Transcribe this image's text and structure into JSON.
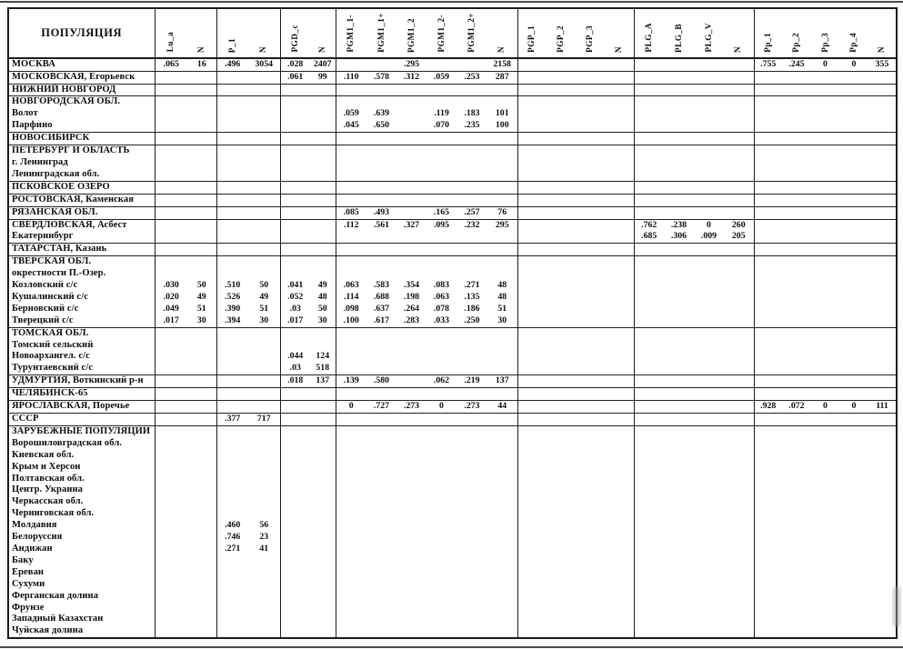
{
  "table": {
    "population_header": "ПОПУЛЯЦИЯ",
    "columns": [
      {
        "label": "Lu_a",
        "group_start": true
      },
      {
        "label": "N"
      },
      {
        "label": "P_1",
        "group_start": true
      },
      {
        "label": "N"
      },
      {
        "label": "PGD_c",
        "group_start": true
      },
      {
        "label": "N"
      },
      {
        "label": "PGM1_1-",
        "group_start": true
      },
      {
        "label": "PGM1_1+"
      },
      {
        "label": "PGM1_2"
      },
      {
        "label": "PGM1_2-"
      },
      {
        "label": "PGM1_2+"
      },
      {
        "label": "N"
      },
      {
        "label": "PGP_1",
        "group_start": true
      },
      {
        "label": "PGP_2"
      },
      {
        "label": "PGP_3"
      },
      {
        "label": "N"
      },
      {
        "label": "PLG_A",
        "group_start": true
      },
      {
        "label": "PLG_B"
      },
      {
        "label": "PLG_V"
      },
      {
        "label": "N"
      },
      {
        "label": "Pp_1",
        "group_start": true
      },
      {
        "label": "Pp_2"
      },
      {
        "label": "Pp_3"
      },
      {
        "label": "Pp_4"
      },
      {
        "label": "N"
      }
    ],
    "rows": [
      {
        "name": "МОСКВА",
        "section": true,
        "values": {
          "0": ".065",
          "1": "16",
          "2": ".496",
          "3": "3054",
          "4": ".028",
          "5": "2407",
          "8": ".295",
          "11": "2158",
          "20": ".755",
          "21": ".245",
          "22": "0",
          "23": "0",
          "24": "355"
        }
      },
      {
        "name": "МОСКОВСКАЯ, Егорьевск",
        "section": true,
        "values": {
          "4": ".061",
          "5": "99",
          "6": ".110",
          "7": ".578",
          "8": ".312",
          "9": ".059",
          "10": ".253",
          "11": "287"
        }
      },
      {
        "name": "НИЖНИЙ НОВГОРОД",
        "section": true,
        "values": {}
      },
      {
        "name": "НОВГОРОДСКАЯ ОБЛ.",
        "section": true,
        "values": {}
      },
      {
        "name": "Волот",
        "section": false,
        "values": {
          "6": ".059",
          "7": ".639",
          "9": ".119",
          "10": ".183",
          "11": "101"
        }
      },
      {
        "name": "Парфино",
        "section": false,
        "values": {
          "6": ".045",
          "7": ".650",
          "9": ".070",
          "10": ".235",
          "11": "100"
        }
      },
      {
        "name": "НОВОСИБИРСК",
        "section": true,
        "values": {}
      },
      {
        "name": "ПЕТЕРБУРГ И ОБЛАСТЬ",
        "section": true,
        "values": {}
      },
      {
        "name": "г. Ленинград",
        "section": false,
        "values": {}
      },
      {
        "name": "Ленинградская обл.",
        "section": false,
        "values": {}
      },
      {
        "name": "ПСКОВСКОЕ ОЗЕРО",
        "section": true,
        "values": {}
      },
      {
        "name": "РОСТОВСКАЯ, Каменская",
        "section": true,
        "values": {}
      },
      {
        "name": "РЯЗАНСКАЯ ОБЛ.",
        "section": true,
        "values": {
          "6": ".085",
          "7": ".493",
          "9": ".165",
          "10": ".257",
          "11": "76"
        }
      },
      {
        "name": "СВЕРДЛОВСКАЯ, Асбест",
        "section": true,
        "values": {
          "6": ".112",
          "7": ".561",
          "8": ".327",
          "9": ".095",
          "10": ".232",
          "11": "295",
          "16": ".762",
          "17": ".238",
          "18": "0",
          "19": "260"
        }
      },
      {
        "name": "Екатеринбург",
        "section": false,
        "values": {
          "16": ".685",
          "17": ".306",
          "18": ".009",
          "19": "205"
        }
      },
      {
        "name": "ТАТАРСТАН, Казань",
        "section": true,
        "values": {}
      },
      {
        "name": "ТВЕРСКАЯ ОБЛ.",
        "section": true,
        "values": {}
      },
      {
        "name": "окрестности П.-Озер.",
        "section": false,
        "values": {}
      },
      {
        "name": "Козловский с/с",
        "section": false,
        "values": {
          "0": ".030",
          "1": "50",
          "2": ".510",
          "3": "50",
          "4": ".041",
          "5": "49",
          "6": ".063",
          "7": ".583",
          "8": ".354",
          "9": ".083",
          "10": ".271",
          "11": "48"
        }
      },
      {
        "name": "Кушалинский с/с",
        "section": false,
        "values": {
          "0": ".020",
          "1": "49",
          "2": ".526",
          "3": "49",
          "4": ".052",
          "5": "48",
          "6": ".114",
          "7": ".688",
          "8": ".198",
          "9": ".063",
          "10": ".135",
          "11": "48"
        }
      },
      {
        "name": "Берновский с/с",
        "section": false,
        "values": {
          "0": ".049",
          "1": "51",
          "2": ".390",
          "3": "51",
          "4": ".03",
          "5": "50",
          "6": ".098",
          "7": ".637",
          "8": ".264",
          "9": ".078",
          "10": ".186",
          "11": "51"
        }
      },
      {
        "name": "Тверецкий с/с",
        "section": false,
        "values": {
          "0": ".017",
          "1": "30",
          "2": ".394",
          "3": "30",
          "4": ".017",
          "5": "30",
          "6": ".100",
          "7": ".617",
          "8": ".283",
          "9": ".033",
          "10": ".250",
          "11": "30"
        }
      },
      {
        "name": "ТОМСКАЯ ОБЛ.",
        "section": true,
        "values": {}
      },
      {
        "name": "Томский сельский",
        "section": false,
        "values": {}
      },
      {
        "name": "Новоархангел. с/с",
        "section": false,
        "values": {
          "4": ".044",
          "5": "124"
        }
      },
      {
        "name": "Турунтаевский с/с",
        "section": false,
        "values": {
          "4": ".03",
          "5": "518"
        }
      },
      {
        "name": "УДМУРТИЯ, Воткинский р-н",
        "section": true,
        "values": {
          "4": ".018",
          "5": "137",
          "6": ".139",
          "7": ".580",
          "9": ".062",
          "10": ".219",
          "11": "137"
        }
      },
      {
        "name": "ЧЕЛЯБИНСК-65",
        "section": true,
        "values": {}
      },
      {
        "name": "ЯРОСЛАВСКАЯ, Поречье",
        "section": true,
        "values": {
          "6": "0",
          "7": ".727",
          "8": ".273",
          "9": "0",
          "10": ".273",
          "11": "44",
          "20": ".928",
          "21": ".072",
          "22": "0",
          "23": "0",
          "24": "111"
        }
      },
      {
        "name": "СССР",
        "section": true,
        "values": {
          "2": ".377",
          "3": "717"
        }
      },
      {
        "name": "ЗАРУБЕЖНЫЕ ПОПУЛЯЦИИ",
        "section": true,
        "values": {}
      },
      {
        "name": "Ворошиловградская обл.",
        "section": false,
        "values": {}
      },
      {
        "name": "Киевская обл.",
        "section": false,
        "values": {}
      },
      {
        "name": "Крым и Херсон",
        "section": false,
        "values": {}
      },
      {
        "name": "Полтавская обл.",
        "section": false,
        "values": {}
      },
      {
        "name": "Центр. Украина",
        "section": false,
        "values": {}
      },
      {
        "name": "Черкасская обл.",
        "section": false,
        "values": {}
      },
      {
        "name": "Черниговская обл.",
        "section": false,
        "values": {}
      },
      {
        "name": "Молдавия",
        "section": false,
        "values": {
          "2": ".460",
          "3": "56"
        }
      },
      {
        "name": "Белоруссия",
        "section": false,
        "values": {
          "2": ".746",
          "3": "23"
        }
      },
      {
        "name": "Андижан",
        "section": false,
        "values": {
          "2": ".271",
          "3": "41"
        }
      },
      {
        "name": "Баку",
        "section": false,
        "values": {}
      },
      {
        "name": "Ереван",
        "section": false,
        "values": {}
      },
      {
        "name": "Сухуми",
        "section": false,
        "values": {}
      },
      {
        "name": "Ферганская долина",
        "section": false,
        "values": {}
      },
      {
        "name": "Фрунзе",
        "section": false,
        "values": {}
      },
      {
        "name": "Западный Казахстан",
        "section": false,
        "values": {}
      },
      {
        "name": "Чуйская долина",
        "section": false,
        "values": {}
      }
    ]
  }
}
